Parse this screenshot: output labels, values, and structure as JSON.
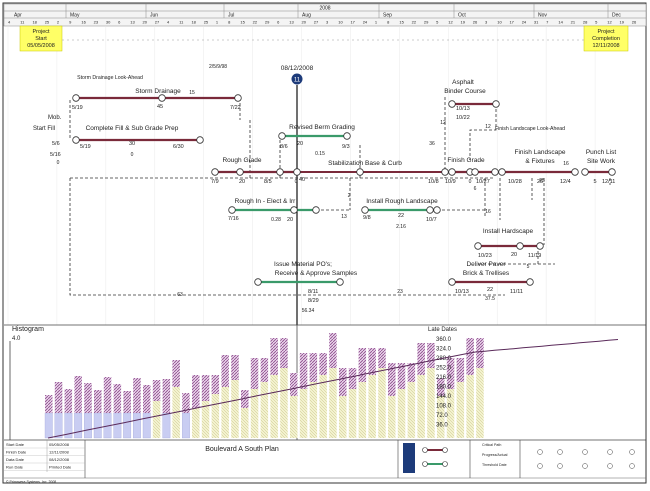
{
  "timeline": {
    "year": "2008",
    "months": [
      "Apr",
      "May",
      "Jun",
      "Jul",
      "Aug",
      "Sep",
      "Oct",
      "Nov",
      "Dec"
    ],
    "days_row": [
      "4",
      "11",
      "18",
      "25",
      "2",
      "9",
      "16",
      "23",
      "30",
      "6",
      "13",
      "20",
      "27",
      "4",
      "11",
      "18",
      "25",
      "1",
      "8",
      "15",
      "22",
      "29",
      "6",
      "13",
      "20",
      "27",
      "3",
      "10",
      "17",
      "24",
      "1",
      "8",
      "15",
      "22",
      "29",
      "5",
      "12",
      "19",
      "26",
      "3",
      "10",
      "17",
      "24",
      "31",
      "7",
      "14",
      "21",
      "28",
      "5",
      "12",
      "19",
      "26"
    ]
  },
  "callouts": {
    "project_start": [
      "Project",
      "Start",
      "05/05/2008"
    ],
    "project_completion": [
      "Project",
      "Completion",
      "12/11/2008"
    ]
  },
  "data_date": {
    "label": "08/12/2008",
    "marker": "11"
  },
  "activities": [
    {
      "name": "Storm Drainage",
      "start": "5/19",
      "finish": "7/22",
      "duration": "45",
      "float": "15"
    },
    {
      "name": "Storm Drainage Look-Ahead"
    },
    {
      "name": "Mob.",
      "start": "5/6",
      "float": "0"
    },
    {
      "name": "Start Fill",
      "start": "5/16"
    },
    {
      "name": "Complete Fill & Sub Grade Prep",
      "start": "5/19",
      "finish": "6/30",
      "duration": "30",
      "float": "0"
    },
    {
      "name": "Revised Berm Grading",
      "start": "8/6",
      "finish": "9/3",
      "duration": "20",
      "float": "0.15"
    },
    {
      "name": "Rough Grade",
      "start": "7/9",
      "finish": "8/5",
      "duration": "20"
    },
    {
      "name": "Stabilization Base & Curb",
      "finish": "10/8",
      "duration": "40"
    },
    {
      "name": "Rough In - Elect & Irr",
      "start": "7/16",
      "duration": "20",
      "float": "0.28"
    },
    {
      "name": "Install Rough Landscape",
      "start": "9/8",
      "finish": "10/7",
      "duration": "22",
      "float": "2.16"
    },
    {
      "name": "Asphalt",
      "start": "10/13"
    },
    {
      "name": "Binder Course",
      "finish": "10/22"
    },
    {
      "name": "Finish Grade",
      "start": "10/9",
      "finish": "10/27"
    },
    {
      "name": "Finish Landscape",
      "start": "10/28",
      "finish": "12/4",
      "duration": "25"
    },
    {
      "name": "& Fixtures"
    },
    {
      "name": "Finish Landscape Look-Ahead"
    },
    {
      "name": "Punch List",
      "finish": "12/11",
      "duration": "5"
    },
    {
      "name": "Site Work"
    },
    {
      "name": "Install Hardscape",
      "start": "10/23",
      "finish": "11/19",
      "duration": "20"
    },
    {
      "name": "Issue Material PO's;",
      "start": "8/11",
      "finish": "8/29",
      "float": "56.34"
    },
    {
      "name": "Receive & Approve Samples"
    },
    {
      "name": "Deliver Paver",
      "start": "10/13",
      "finish": "11/11",
      "duration": "22",
      "float": "37.5"
    },
    {
      "name": "Brick & Trellises"
    }
  ],
  "loose_labels": [
    "2/5/9/98",
    "12",
    "36",
    "2",
    "13",
    "16",
    "25",
    "5",
    "6",
    "63",
    "23",
    "12",
    "16",
    "0",
    "0"
  ],
  "histogram": {
    "title": "Histogram",
    "max_label": "4.0",
    "late_title": "Late Dates",
    "late_values": [
      "360.0",
      "324.0",
      "288.0",
      "252.0",
      "216.0",
      "180.0",
      "144.0",
      "108.0",
      "72.0",
      "36.0"
    ]
  },
  "footer": {
    "rows": [
      [
        "Start Date",
        "05/05/2008"
      ],
      [
        "Finish Date",
        "12/11/2008"
      ],
      [
        "Data Date",
        "08/12/2008"
      ],
      [
        "Run Date",
        "Printed Date"
      ]
    ],
    "plan_title": "Boulevard A South Plan",
    "bottom": "© Primavera Systems, Inc. 2008",
    "legend": [
      "Critical Path",
      "Progress/Actual",
      "Threshold Date"
    ]
  },
  "colors": {
    "critical": "#7a2a3a",
    "normal": "#3a9a6a",
    "dashed": "#333333",
    "callout": "#ffff66",
    "purple": "#9a6a9a",
    "blue": "#c9cdf2",
    "yellow": "#efeebb"
  }
}
